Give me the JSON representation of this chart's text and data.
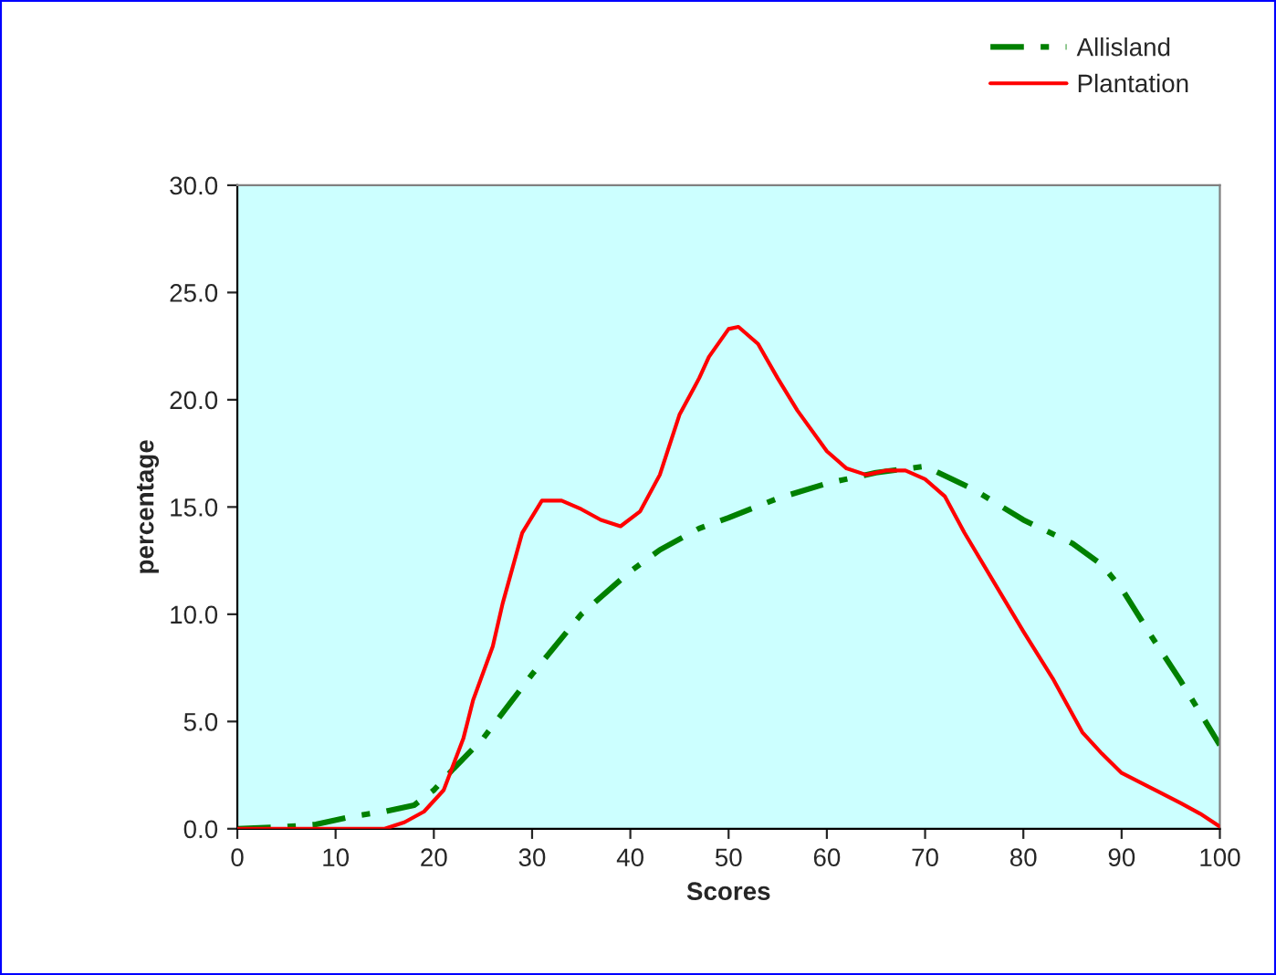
{
  "chart_data": {
    "type": "line",
    "xlabel": "Scores",
    "ylabel": "percentage",
    "xlim": [
      0,
      100
    ],
    "xticks": [
      0,
      10,
      20,
      30,
      40,
      50,
      60,
      70,
      80,
      90,
      100
    ],
    "ylim": [
      0,
      30
    ],
    "yticks": [
      {
        "value": 0,
        "label": "0.0"
      },
      {
        "value": 5,
        "label": "5.0"
      },
      {
        "value": 10,
        "label": "10.0"
      },
      {
        "value": 15,
        "label": "15.0"
      },
      {
        "value": 20,
        "label": "20.0"
      },
      {
        "value": 25,
        "label": "25.0"
      },
      {
        "value": 30,
        "label": "30.0"
      }
    ],
    "grid": false,
    "legend": "top right",
    "marker": "none",
    "series": [
      {
        "name": "Allisland",
        "color": "#008000",
        "line_style": "dashdot",
        "x": [
          0,
          5,
          8,
          12,
          15,
          18,
          20,
          22,
          25,
          30,
          35,
          40,
          43,
          47,
          50,
          55,
          60,
          65,
          70,
          75,
          80,
          85,
          88,
          90,
          93,
          96,
          100
        ],
        "values": [
          0,
          0.1,
          0.2,
          0.6,
          0.8,
          1.1,
          1.8,
          2.8,
          4.2,
          7.2,
          10.0,
          12.0,
          13.0,
          14.0,
          14.5,
          15.4,
          16.1,
          16.6,
          16.9,
          15.8,
          14.4,
          13.3,
          12.3,
          11.2,
          9.0,
          6.9,
          3.9
        ]
      },
      {
        "name": "Plantation",
        "color": "#ff0000",
        "line_style": "solid",
        "x": [
          0,
          5,
          8,
          10,
          15,
          17,
          19,
          21,
          22,
          23,
          24,
          26,
          27,
          29,
          31,
          33,
          35,
          37,
          39,
          41,
          43,
          45,
          47,
          48,
          50,
          51,
          53,
          55,
          57,
          60,
          62,
          64,
          66,
          68,
          70,
          72,
          74,
          77,
          80,
          83,
          86,
          88,
          90,
          93,
          96,
          98,
          100
        ],
        "values": [
          0,
          0,
          0,
          0,
          0,
          0.3,
          0.8,
          1.8,
          3.0,
          4.2,
          6.0,
          8.5,
          10.5,
          13.8,
          15.3,
          15.3,
          14.9,
          14.4,
          14.1,
          14.8,
          16.5,
          19.3,
          21.0,
          22.0,
          23.3,
          23.4,
          22.6,
          21.0,
          19.5,
          17.6,
          16.8,
          16.5,
          16.7,
          16.7,
          16.3,
          15.5,
          13.8,
          11.5,
          9.2,
          7.0,
          4.5,
          3.5,
          2.6,
          1.9,
          1.2,
          0.7,
          0.1
        ]
      }
    ]
  }
}
